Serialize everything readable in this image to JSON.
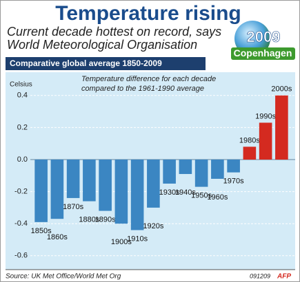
{
  "chart_data": {
    "type": "bar",
    "title": "Temperature rising",
    "subtitle": [
      "Current decade hottest on record, says",
      "World Meteorological Organisation"
    ],
    "section_label": "Comparative global average 1850-2009",
    "y_label": "Celsius",
    "annotation": [
      "Temperature difference for each decade",
      "compared to the 1961-1990 average"
    ],
    "categories": [
      "1850s",
      "1860s",
      "1870s",
      "1880s",
      "1890s",
      "1900s",
      "1910s",
      "1920s",
      "1930s",
      "1940s",
      "1950s",
      "1960s",
      "1970s",
      "1980s",
      "1990s",
      "2000s"
    ],
    "values": [
      -0.39,
      -0.37,
      -0.24,
      -0.26,
      -0.32,
      -0.4,
      -0.44,
      -0.3,
      -0.15,
      -0.09,
      -0.17,
      -0.12,
      -0.08,
      0.08,
      0.23,
      0.4
    ],
    "colors": {
      "negative": "#3b86c2",
      "positive": "#d42a20"
    },
    "ylim": [
      -0.68,
      0.5
    ],
    "yticks": [
      0.4,
      0.2,
      {
        "value": 0,
        "label": "0.0"
      },
      -0.2,
      -0.4,
      -0.6
    ],
    "grid": true
  },
  "logo": {
    "year": "2009",
    "name": "Copenhagen"
  },
  "footer": {
    "source": "Source: UK Met Office/World Met Org",
    "date": "091209",
    "agency": "AFP"
  }
}
